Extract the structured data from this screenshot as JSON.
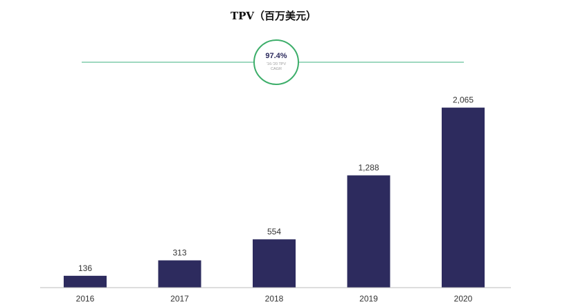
{
  "chart_data": {
    "type": "bar",
    "title": "TPV（百万美元）",
    "categories": [
      "2016",
      "2017",
      "2018",
      "2019",
      "2020"
    ],
    "values": [
      136,
      313,
      554,
      1288,
      2065
    ],
    "value_labels": [
      "136",
      "313",
      "554",
      "1,288",
      "2,065"
    ],
    "ylim": [
      0,
      2300
    ],
    "xlabel": "",
    "ylabel": "",
    "grid": false,
    "bar_color": "#2d2b5e",
    "annotation": {
      "value": "97.4%",
      "line1": "'16-'20 TPV",
      "line2": "CAGR",
      "ring_color": "#3dae6a",
      "line_color": "#9fd8bf",
      "value_color": "#2d2b5e"
    }
  }
}
